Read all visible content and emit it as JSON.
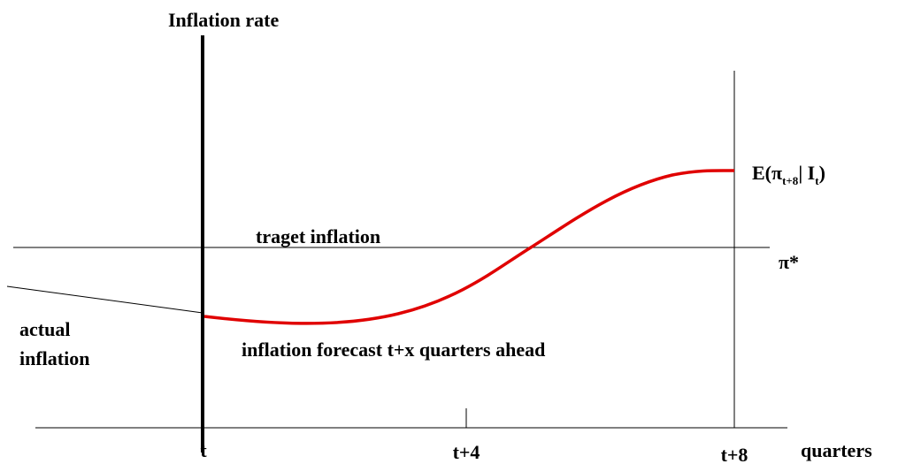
{
  "axes": {
    "y_title": "Inflation rate",
    "x_title": "quarters",
    "x_labels": [
      "t",
      "t+4",
      "t+8"
    ]
  },
  "target": {
    "label": "traget inflation",
    "symbol": "π*"
  },
  "actual": {
    "label_lines": [
      "actual",
      "inflation"
    ]
  },
  "forecast": {
    "label": "inflation forecast t+x quarters ahead",
    "end_label": {
      "prefix": "E(",
      "symbol": "π",
      "sub1": "t+8",
      "mid": "| I",
      "sub2": "t",
      "suffix": ")"
    }
  }
}
